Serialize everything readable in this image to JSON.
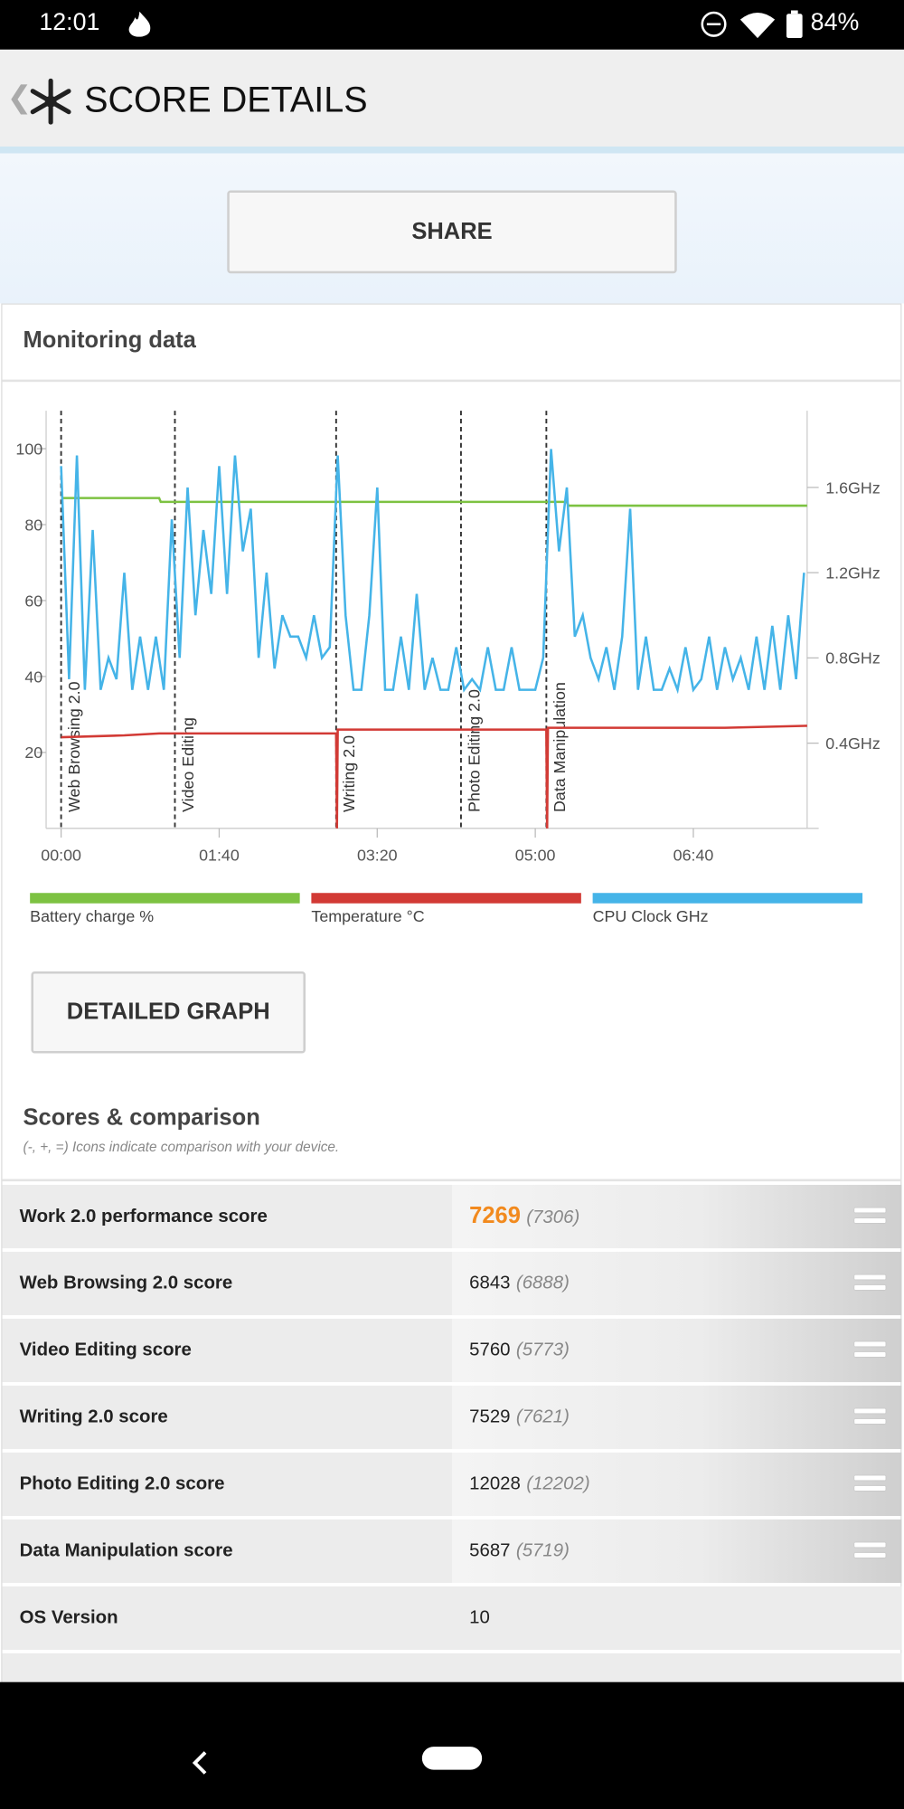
{
  "status_bar": {
    "time": "12:01",
    "battery": "84%"
  },
  "header": {
    "title": "SCORE DETAILS"
  },
  "share_button": "SHARE",
  "monitoring": {
    "title": "Monitoring data",
    "chart_data": {
      "type": "line",
      "xlim": [
        0,
        472
      ],
      "xticks": [
        {
          "value": 0,
          "label": "00:00"
        },
        {
          "value": 100,
          "label": "01:40"
        },
        {
          "value": 200,
          "label": "03:20"
        },
        {
          "value": 300,
          "label": "05:00"
        },
        {
          "value": 400,
          "label": "06:40"
        }
      ],
      "ylim": [
        0,
        110
      ],
      "yticks": [
        20,
        40,
        60,
        80,
        100
      ],
      "y2lim": [
        0,
        1.96
      ],
      "y2ticks": [
        {
          "value": 0.4,
          "label": "0.4GHz"
        },
        {
          "value": 0.8,
          "label": "0.8GHz"
        },
        {
          "value": 1.2,
          "label": "1.2GHz"
        },
        {
          "value": 1.6,
          "label": "1.6GHz"
        }
      ],
      "markers": [
        {
          "x": 0,
          "label": "Web Browsing 2.0"
        },
        {
          "x": 72,
          "label": "Video Editing"
        },
        {
          "x": 174,
          "label": "Writing 2.0"
        },
        {
          "x": 253,
          "label": "Photo Editing 2.0"
        },
        {
          "x": 307,
          "label": "Data Manipulation"
        }
      ],
      "series": [
        {
          "name": "Battery charge %",
          "color": "#7dc242",
          "axis": "y",
          "x": [
            0,
            62,
            63,
            320,
            321,
            472
          ],
          "values": [
            87,
            87,
            86,
            86,
            85,
            85
          ]
        },
        {
          "name": "Temperature °C",
          "color": "#d23a35",
          "axis": "y",
          "x": [
            0,
            40,
            62,
            174,
            174.5,
            175,
            307,
            307.5,
            308,
            420,
            472
          ],
          "values": [
            24,
            24.5,
            25,
            25,
            0,
            26,
            26,
            0,
            26.5,
            26.5,
            27
          ]
        },
        {
          "name": "CPU Clock GHz",
          "color": "#45b4e8",
          "axis": "y2",
          "x": [
            0,
            5,
            10,
            15,
            20,
            25,
            30,
            35,
            40,
            45,
            50,
            55,
            60,
            65,
            70,
            75,
            80,
            85,
            90,
            95,
            100,
            105,
            110,
            115,
            120,
            125,
            130,
            135,
            140,
            145,
            150,
            155,
            160,
            165,
            170,
            175,
            180,
            185,
            190,
            195,
            200,
            205,
            210,
            215,
            220,
            225,
            230,
            235,
            240,
            245,
            250,
            255,
            260,
            265,
            270,
            275,
            280,
            285,
            290,
            295,
            300,
            305,
            310,
            315,
            320,
            325,
            330,
            335,
            340,
            345,
            350,
            355,
            360,
            365,
            370,
            375,
            380,
            385,
            390,
            395,
            400,
            405,
            410,
            415,
            420,
            425,
            430,
            435,
            440,
            445,
            450,
            455,
            460,
            465,
            470
          ],
          "values": [
            1.7,
            0.7,
            1.75,
            0.65,
            1.4,
            0.65,
            0.8,
            0.7,
            1.2,
            0.65,
            0.9,
            0.65,
            0.9,
            0.65,
            1.45,
            0.8,
            1.6,
            1.0,
            1.4,
            1.1,
            1.7,
            1.1,
            1.75,
            1.3,
            1.5,
            0.8,
            1.2,
            0.75,
            1.0,
            0.9,
            0.9,
            0.8,
            1.0,
            0.8,
            0.85,
            1.75,
            1.0,
            0.65,
            0.65,
            1.0,
            1.6,
            0.65,
            0.65,
            0.9,
            0.65,
            1.1,
            0.65,
            0.8,
            0.65,
            0.65,
            0.85,
            0.65,
            0.7,
            0.65,
            0.85,
            0.65,
            0.65,
            0.85,
            0.65,
            0.65,
            0.65,
            0.8,
            1.78,
            1.3,
            1.6,
            0.9,
            1.0,
            0.8,
            0.7,
            0.85,
            0.65,
            0.9,
            1.5,
            0.65,
            0.9,
            0.65,
            0.65,
            0.75,
            0.65,
            0.85,
            0.65,
            0.7,
            0.9,
            0.65,
            0.85,
            0.7,
            0.8,
            0.65,
            0.9,
            0.65,
            0.95,
            0.65,
            1.0,
            0.7,
            1.2
          ]
        }
      ]
    },
    "detailed_button": "DETAILED GRAPH"
  },
  "scores": {
    "title": "Scores & comparison",
    "note": "(-, +, =) Icons indicate comparison with your device.",
    "rows": [
      {
        "label": "Work 2.0 performance score",
        "score": 7269,
        "compare": "(7306)"
      },
      {
        "label": "Web Browsing 2.0 score",
        "score": 6843,
        "compare": "(6888)"
      },
      {
        "label": "Video Editing score",
        "score": 5760,
        "compare": "(5773)"
      },
      {
        "label": "Writing 2.0 score",
        "score": 7529,
        "compare": "(7621)"
      },
      {
        "label": "Photo Editing 2.0 score",
        "score": 12028,
        "compare": "(12202)"
      },
      {
        "label": "Data Manipulation score",
        "score": 5687,
        "compare": "(5719)"
      },
      {
        "label": "OS Version",
        "score": 10
      }
    ]
  }
}
